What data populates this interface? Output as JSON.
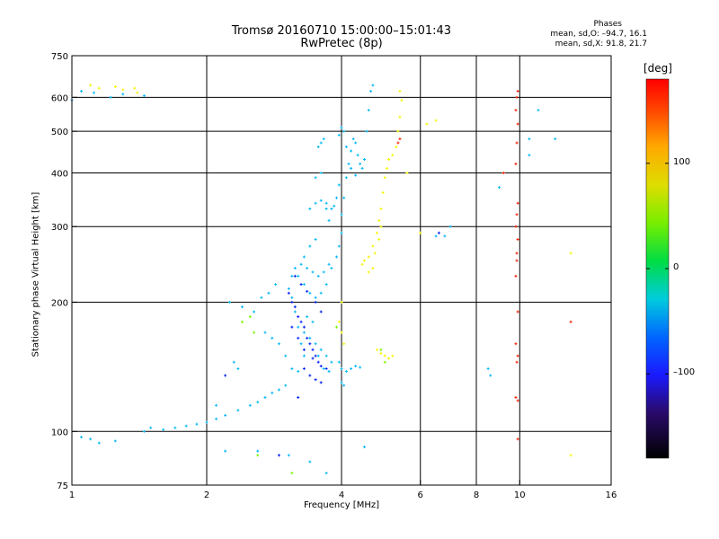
{
  "chart_data": {
    "type": "scatter",
    "title_line1": "Tromsø 20160710 15:00:00–15:01:43",
    "title_line2": "RwPretec (8p)",
    "xlabel": "Frequency [MHz]",
    "ylabel": "Stationary phase Virtual Height [km]",
    "x_scale": "log2",
    "y_scale": "log",
    "xlim": [
      1,
      16
    ],
    "ylim": [
      75,
      750
    ],
    "x_ticks": [
      1,
      2,
      4,
      6,
      8,
      10,
      16
    ],
    "x_tick_labels": [
      "1",
      "2",
      "4",
      "6",
      "8",
      "10",
      "16"
    ],
    "x_grid": [
      2,
      4,
      6,
      8,
      10
    ],
    "y_ticks": [
      75,
      100,
      200,
      300,
      400,
      500,
      600,
      750
    ],
    "y_tick_labels": [
      "75",
      "100",
      "200",
      "300",
      "400",
      "500",
      "600",
      "750"
    ],
    "y_grid": [
      100,
      200,
      300,
      400,
      500,
      600
    ],
    "grid": true,
    "legend": {
      "title": "Phases",
      "line1": "mean, sd,O: –94.7, 16.1",
      "line2": "mean, sd,X:  91.8, 21.7"
    },
    "colorbar": {
      "unit": "[deg]",
      "range": [
        -180,
        180
      ],
      "ticks": [
        100,
        0,
        -100
      ],
      "tick_labels": [
        "100",
        "0",
        "–100"
      ]
    },
    "series": [
      {
        "color_deg": -100,
        "points": [
          [
            1.0,
            590
          ],
          [
            1.05,
            620
          ],
          [
            1.12,
            615
          ],
          [
            1.22,
            600
          ],
          [
            1.3,
            610
          ],
          [
            1.45,
            605
          ],
          [
            1.05,
            97
          ],
          [
            1.1,
            96
          ],
          [
            1.15,
            94
          ],
          [
            1.25,
            95
          ],
          [
            1.45,
            100
          ],
          [
            1.5,
            102
          ],
          [
            1.6,
            101
          ],
          [
            1.7,
            102
          ],
          [
            1.8,
            103
          ],
          [
            1.9,
            104
          ],
          [
            2.0,
            105
          ],
          [
            2.1,
            107
          ],
          [
            2.2,
            109
          ],
          [
            2.35,
            112
          ],
          [
            2.5,
            115
          ],
          [
            2.6,
            117
          ],
          [
            2.7,
            120
          ],
          [
            2.8,
            123
          ],
          [
            2.9,
            125
          ],
          [
            3.0,
            128
          ],
          [
            2.25,
            200
          ],
          [
            2.4,
            195
          ],
          [
            2.55,
            190
          ],
          [
            2.65,
            205
          ],
          [
            2.75,
            210
          ],
          [
            2.85,
            220
          ],
          [
            2.7,
            170
          ],
          [
            2.8,
            165
          ],
          [
            2.9,
            160
          ],
          [
            3.0,
            150
          ],
          [
            3.1,
            140
          ],
          [
            3.2,
            138
          ],
          [
            3.05,
            215
          ],
          [
            3.1,
            205
          ],
          [
            3.15,
            190
          ],
          [
            3.2,
            175
          ],
          [
            3.25,
            160
          ],
          [
            3.3,
            150
          ],
          [
            3.1,
            230
          ],
          [
            3.15,
            240
          ],
          [
            3.25,
            245
          ],
          [
            3.3,
            255
          ],
          [
            3.4,
            270
          ],
          [
            3.5,
            280
          ],
          [
            3.2,
            230
          ],
          [
            3.3,
            220
          ],
          [
            3.4,
            210
          ],
          [
            3.5,
            205
          ],
          [
            3.6,
            210
          ],
          [
            3.7,
            220
          ],
          [
            3.8,
            240
          ],
          [
            3.9,
            255
          ],
          [
            3.95,
            270
          ],
          [
            4.0,
            290
          ],
          [
            3.35,
            240
          ],
          [
            3.45,
            235
          ],
          [
            3.55,
            230
          ],
          [
            3.65,
            235
          ],
          [
            3.75,
            245
          ],
          [
            3.3,
            170
          ],
          [
            3.4,
            165
          ],
          [
            3.5,
            160
          ],
          [
            3.6,
            155
          ],
          [
            3.7,
            150
          ],
          [
            3.8,
            145
          ],
          [
            3.35,
            185
          ],
          [
            3.45,
            180
          ],
          [
            3.55,
            150
          ],
          [
            3.65,
            140
          ],
          [
            3.75,
            138
          ],
          [
            3.4,
            330
          ],
          [
            3.5,
            340
          ],
          [
            3.6,
            345
          ],
          [
            3.7,
            330
          ],
          [
            3.75,
            310
          ],
          [
            3.5,
            390
          ],
          [
            3.6,
            400
          ],
          [
            3.65,
            480
          ],
          [
            3.6,
            470
          ],
          [
            3.55,
            460
          ],
          [
            3.7,
            340
          ],
          [
            3.8,
            330
          ],
          [
            3.85,
            335
          ],
          [
            3.9,
            350
          ],
          [
            3.95,
            375
          ],
          [
            4.0,
            320
          ],
          [
            4.05,
            350
          ],
          [
            4.1,
            390
          ],
          [
            4.15,
            420
          ],
          [
            4.2,
            450
          ],
          [
            4.25,
            480
          ],
          [
            4.3,
            470
          ],
          [
            4.35,
            440
          ],
          [
            4.4,
            420
          ],
          [
            4.45,
            410
          ],
          [
            4.5,
            430
          ],
          [
            4.55,
            500
          ],
          [
            4.6,
            560
          ],
          [
            4.65,
            620
          ],
          [
            4.7,
            640
          ],
          [
            3.95,
            490
          ],
          [
            4.0,
            510
          ],
          [
            4.05,
            500
          ],
          [
            4.1,
            460
          ],
          [
            4.2,
            410
          ],
          [
            4.3,
            395
          ],
          [
            4.0,
            140
          ],
          [
            4.1,
            138
          ],
          [
            4.2,
            140
          ],
          [
            4.3,
            142
          ],
          [
            4.4,
            141
          ],
          [
            4.0,
            130
          ],
          [
            4.05,
            128
          ],
          [
            3.95,
            145
          ],
          [
            9.0,
            370
          ],
          [
            10.5,
            480
          ],
          [
            10.5,
            440
          ],
          [
            11.0,
            560
          ],
          [
            12.0,
            480
          ],
          [
            7.0,
            300
          ],
          [
            6.8,
            285
          ],
          [
            6.5,
            285
          ],
          [
            2.2,
            90
          ],
          [
            2.6,
            90
          ],
          [
            3.05,
            88
          ],
          [
            3.4,
            85
          ],
          [
            3.7,
            80
          ],
          [
            4.5,
            92
          ],
          [
            2.3,
            145
          ],
          [
            2.35,
            140
          ],
          [
            2.1,
            115
          ],
          [
            8.5,
            140
          ],
          [
            8.6,
            135
          ]
        ]
      },
      {
        "color_deg": -150,
        "points": [
          [
            3.05,
            210
          ],
          [
            3.1,
            200
          ],
          [
            3.15,
            195
          ],
          [
            3.2,
            185
          ],
          [
            3.25,
            180
          ],
          [
            3.3,
            175
          ],
          [
            3.35,
            165
          ],
          [
            3.4,
            160
          ],
          [
            3.45,
            155
          ],
          [
            3.5,
            150
          ],
          [
            3.55,
            145
          ],
          [
            3.1,
            175
          ],
          [
            3.2,
            165
          ],
          [
            3.3,
            155
          ],
          [
            3.45,
            148
          ],
          [
            3.6,
            142
          ],
          [
            3.7,
            140
          ],
          [
            3.15,
            230
          ],
          [
            3.25,
            220
          ],
          [
            3.35,
            212
          ],
          [
            3.5,
            200
          ],
          [
            3.6,
            190
          ],
          [
            3.3,
            140
          ],
          [
            3.4,
            135
          ],
          [
            3.5,
            132
          ],
          [
            3.6,
            130
          ],
          [
            2.2,
            135
          ],
          [
            2.9,
            88
          ],
          [
            6.6,
            290
          ],
          [
            3.2,
            120
          ]
        ]
      },
      {
        "color_deg": 80,
        "points": [
          [
            1.1,
            640
          ],
          [
            1.15,
            630
          ],
          [
            1.25,
            635
          ],
          [
            1.3,
            625
          ],
          [
            1.38,
            630
          ],
          [
            1.4,
            615
          ],
          [
            4.45,
            245
          ],
          [
            4.5,
            250
          ],
          [
            4.6,
            255
          ],
          [
            4.7,
            270
          ],
          [
            4.8,
            290
          ],
          [
            4.85,
            310
          ],
          [
            4.9,
            330
          ],
          [
            4.95,
            360
          ],
          [
            5.0,
            390
          ],
          [
            5.05,
            410
          ],
          [
            5.1,
            430
          ],
          [
            5.2,
            440
          ],
          [
            5.3,
            460
          ],
          [
            5.35,
            500
          ],
          [
            5.4,
            540
          ],
          [
            5.45,
            590
          ],
          [
            5.4,
            620
          ],
          [
            4.6,
            235
          ],
          [
            4.7,
            240
          ],
          [
            4.75,
            260
          ],
          [
            4.85,
            280
          ],
          [
            4.9,
            300
          ],
          [
            4.8,
            155
          ],
          [
            4.9,
            152
          ],
          [
            5.0,
            150
          ],
          [
            5.1,
            148
          ],
          [
            5.2,
            150
          ],
          [
            3.95,
            180
          ],
          [
            4.0,
            170
          ],
          [
            4.05,
            160
          ],
          [
            4.0,
            200
          ],
          [
            5.6,
            400
          ],
          [
            6.0,
            290
          ],
          [
            6.2,
            520
          ],
          [
            6.5,
            530
          ],
          [
            13.0,
            260
          ],
          [
            13.0,
            88
          ]
        ]
      },
      {
        "color_deg": 40,
        "points": [
          [
            2.4,
            180
          ],
          [
            2.5,
            185
          ],
          [
            2.55,
            170
          ],
          [
            4.9,
            155
          ],
          [
            5.0,
            145
          ],
          [
            3.9,
            175
          ],
          [
            2.6,
            88
          ],
          [
            3.1,
            80
          ]
        ]
      },
      {
        "color_deg": 150,
        "points": [
          [
            9.2,
            400
          ],
          [
            9.8,
            160
          ],
          [
            9.9,
            150
          ],
          [
            9.85,
            145
          ],
          [
            9.9,
            118
          ],
          [
            9.8,
            120
          ],
          [
            9.9,
            190
          ],
          [
            9.85,
            260
          ],
          [
            9.9,
            280
          ],
          [
            9.8,
            300
          ],
          [
            9.85,
            320
          ],
          [
            9.9,
            340
          ],
          [
            9.8,
            420
          ],
          [
            9.85,
            470
          ],
          [
            9.9,
            520
          ],
          [
            9.8,
            560
          ],
          [
            9.85,
            600
          ],
          [
            9.9,
            620
          ],
          [
            9.8,
            230
          ],
          [
            9.85,
            250
          ],
          [
            9.9,
            96
          ],
          [
            13.0,
            180
          ],
          [
            5.35,
            470
          ],
          [
            5.4,
            480
          ]
        ]
      }
    ]
  }
}
